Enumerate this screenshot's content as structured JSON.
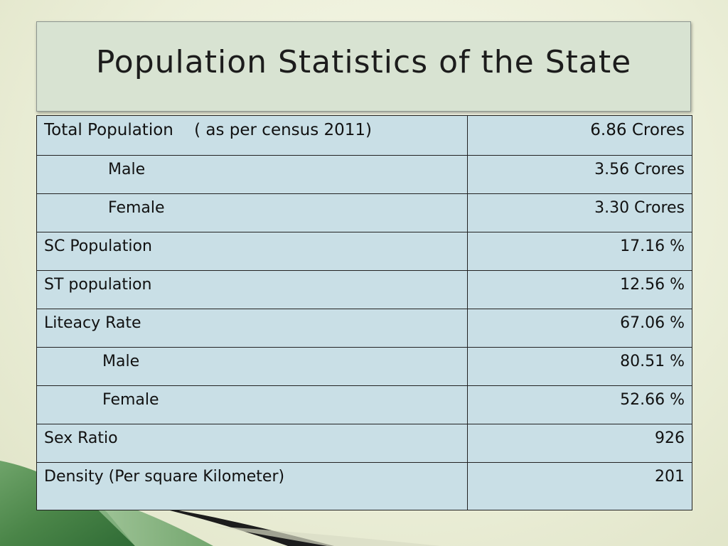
{
  "slide": {
    "title": "Population Statistics of the State"
  },
  "table": {
    "rows": [
      {
        "label": "Total Population    ( as per census 2011)",
        "value": "6.86 Crores"
      },
      {
        "label": "Male",
        "value": "3.56 Crores"
      },
      {
        "label": "Female",
        "value": "3.30 Crores"
      },
      {
        "label": "SC Population",
        "value": "17.16 %"
      },
      {
        "label": "ST population",
        "value": "12.56 %"
      },
      {
        "label": "Liteacy Rate",
        "value": "67.06 %"
      },
      {
        "label": "Male",
        "value": "80.51 %"
      },
      {
        "label": "Female",
        "value": "52.66 %"
      },
      {
        "label": "Sex Ratio",
        "value": "926"
      },
      {
        "label": "Density (Per square Kilometer)",
        "value": "201"
      }
    ]
  },
  "colors": {
    "background": "#ecefd9",
    "title_box": "#d8e3d2",
    "table_cell": "#c9dfe6",
    "accent_green": "#4e8a4e"
  }
}
